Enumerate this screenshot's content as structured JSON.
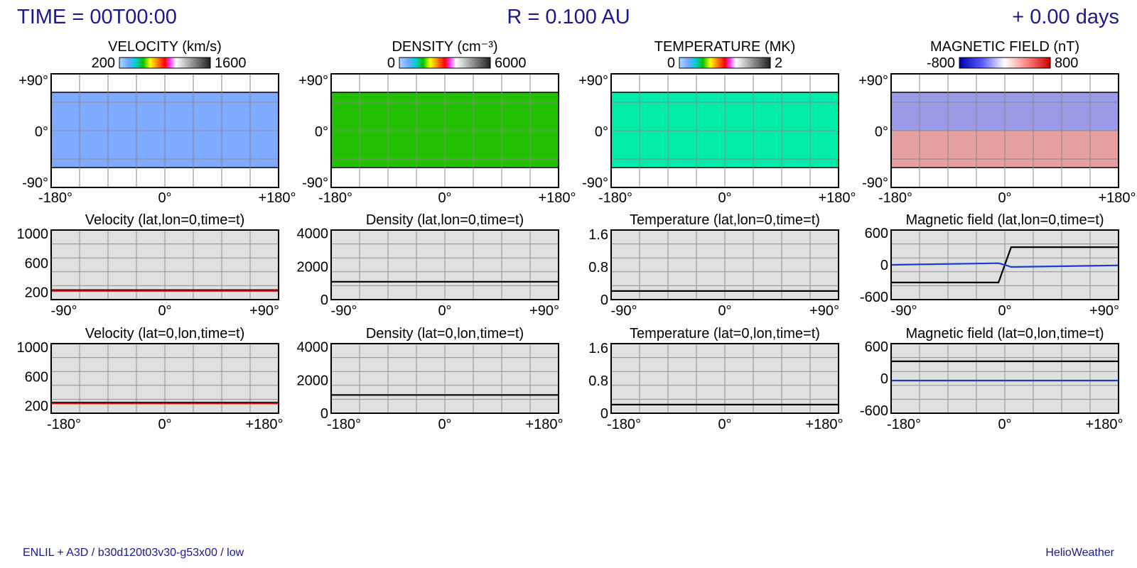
{
  "header": {
    "time": "TIME = 00T00:00",
    "radius": "R = 0.100 AU",
    "elapsed": "+ 0.00 days"
  },
  "footer": {
    "model": "ENLIL + A3D / b30d120t03v30-g53x00 / low",
    "brand": "HelioWeather"
  },
  "maps": [
    {
      "title": "VELOCITY (km/s)",
      "scale_min": "200",
      "scale_max": "1600",
      "colorbar": "rainbow",
      "fill": "#80aaff",
      "y_ticks": [
        "+90°",
        "0°",
        "-90°"
      ],
      "x_ticks": [
        "-180°",
        "0°",
        "+180°"
      ]
    },
    {
      "title": "DENSITY (cm⁻³)",
      "scale_min": "0",
      "scale_max": "6000",
      "colorbar": "rainbow",
      "fill": "#22c000",
      "y_ticks": [
        "+90°",
        "0°",
        "-90°"
      ],
      "x_ticks": [
        "-180°",
        "0°",
        "+180°"
      ]
    },
    {
      "title": "TEMPERATURE (MK)",
      "scale_min": "0",
      "scale_max": "2",
      "colorbar": "rainbow",
      "fill": "#00eeaa",
      "y_ticks": [
        "+90°",
        "0°",
        "-90°"
      ],
      "x_ticks": [
        "-180°",
        "0°",
        "+180°"
      ]
    },
    {
      "title": "MAGNETIC FIELD (nT)",
      "scale_min": "-800",
      "scale_max": "800",
      "colorbar": "bwr",
      "fill_north": "#9a9ae6",
      "fill_south": "#e6a0a0",
      "y_ticks": [
        "+90°",
        "0°",
        "-90°"
      ],
      "x_ticks": [
        "-180°",
        "0°",
        "+180°"
      ]
    }
  ],
  "chart_data": [
    {
      "type": "line",
      "title": "Velocity (lat,lon=0,time=t)",
      "x": [
        -90,
        90
      ],
      "xlim": [
        -90,
        90
      ],
      "ylim": [
        100,
        1050
      ],
      "x_ticks": [
        "-90°",
        "0°",
        "+90°"
      ],
      "y_ticks": [
        "1000",
        "600",
        "200"
      ],
      "series": [
        {
          "color": "#000000",
          "values": [
            230,
            230
          ]
        },
        {
          "color": "#e00000",
          "values": [
            220,
            220
          ]
        }
      ]
    },
    {
      "type": "line",
      "title": "Density (lat,lon=0,time=t)",
      "x": [
        -90,
        90
      ],
      "xlim": [
        -90,
        90
      ],
      "ylim": [
        0,
        4200
      ],
      "x_ticks": [
        "-90°",
        "0°",
        "+90°"
      ],
      "y_ticks": [
        "4000",
        "2000",
        "0"
      ],
      "series": [
        {
          "color": "#000000",
          "values": [
            1080,
            1080
          ]
        }
      ]
    },
    {
      "type": "line",
      "title": "Temperature (lat,lon=0,time=t)",
      "x": [
        -90,
        90
      ],
      "xlim": [
        -90,
        90
      ],
      "ylim": [
        0,
        1.7
      ],
      "x_ticks": [
        "-90°",
        "0°",
        "+90°"
      ],
      "y_ticks": [
        "1.6",
        "0.8",
        "0"
      ],
      "series": [
        {
          "color": "#000000",
          "values": [
            0.21,
            0.21
          ]
        }
      ]
    },
    {
      "type": "line",
      "title": "Magnetic field (lat,lon=0,time=t)",
      "x": [
        -90,
        -5,
        0,
        5,
        90
      ],
      "xlim": [
        -90,
        90
      ],
      "ylim": [
        -650,
        650
      ],
      "x_ticks": [
        "-90°",
        "0°",
        "+90°"
      ],
      "y_ticks": [
        "600",
        "0",
        "-600"
      ],
      "series": [
        {
          "color": "#000000",
          "values": [
            -330,
            -330,
            0,
            330,
            330
          ]
        },
        {
          "color": "#1a3ccf",
          "values": [
            0,
            30,
            0,
            -40,
            -10
          ]
        }
      ]
    },
    {
      "type": "line",
      "title": "Velocity (lat=0,lon,time=t)",
      "x": [
        -180,
        180
      ],
      "xlim": [
        -180,
        180
      ],
      "ylim": [
        100,
        1050
      ],
      "x_ticks": [
        "-180°",
        "0°",
        "+180°"
      ],
      "y_ticks": [
        "1000",
        "600",
        "200"
      ],
      "series": [
        {
          "color": "#000000",
          "values": [
            245,
            245
          ]
        },
        {
          "color": "#e00000",
          "values": [
            235,
            235
          ]
        }
      ]
    },
    {
      "type": "line",
      "title": "Density (lat=0,lon,time=t)",
      "x": [
        -180,
        180
      ],
      "xlim": [
        -180,
        180
      ],
      "ylim": [
        0,
        4200
      ],
      "x_ticks": [
        "-180°",
        "0°",
        "+180°"
      ],
      "y_ticks": [
        "4000",
        "2000",
        "0"
      ],
      "series": [
        {
          "color": "#000000",
          "values": [
            1100,
            1100
          ]
        }
      ]
    },
    {
      "type": "line",
      "title": "Temperature (lat=0,lon,time=t)",
      "x": [
        -180,
        180
      ],
      "xlim": [
        -180,
        180
      ],
      "ylim": [
        0,
        1.7
      ],
      "x_ticks": [
        "-180°",
        "0°",
        "+180°"
      ],
      "y_ticks": [
        "1.6",
        "0.8",
        "0"
      ],
      "series": [
        {
          "color": "#000000",
          "values": [
            0.21,
            0.21
          ]
        }
      ]
    },
    {
      "type": "line",
      "title": "Magnetic field (lat=0,lon,time=t)",
      "x": [
        -180,
        180
      ],
      "xlim": [
        -180,
        180
      ],
      "ylim": [
        -650,
        650
      ],
      "x_ticks": [
        "-180°",
        "0°",
        "+180°"
      ],
      "y_ticks": [
        "600",
        "0",
        "-600"
      ],
      "series": [
        {
          "color": "#000000",
          "values": [
            320,
            320
          ]
        },
        {
          "color": "#1a3ccf",
          "values": [
            -40,
            -40
          ]
        }
      ]
    }
  ]
}
